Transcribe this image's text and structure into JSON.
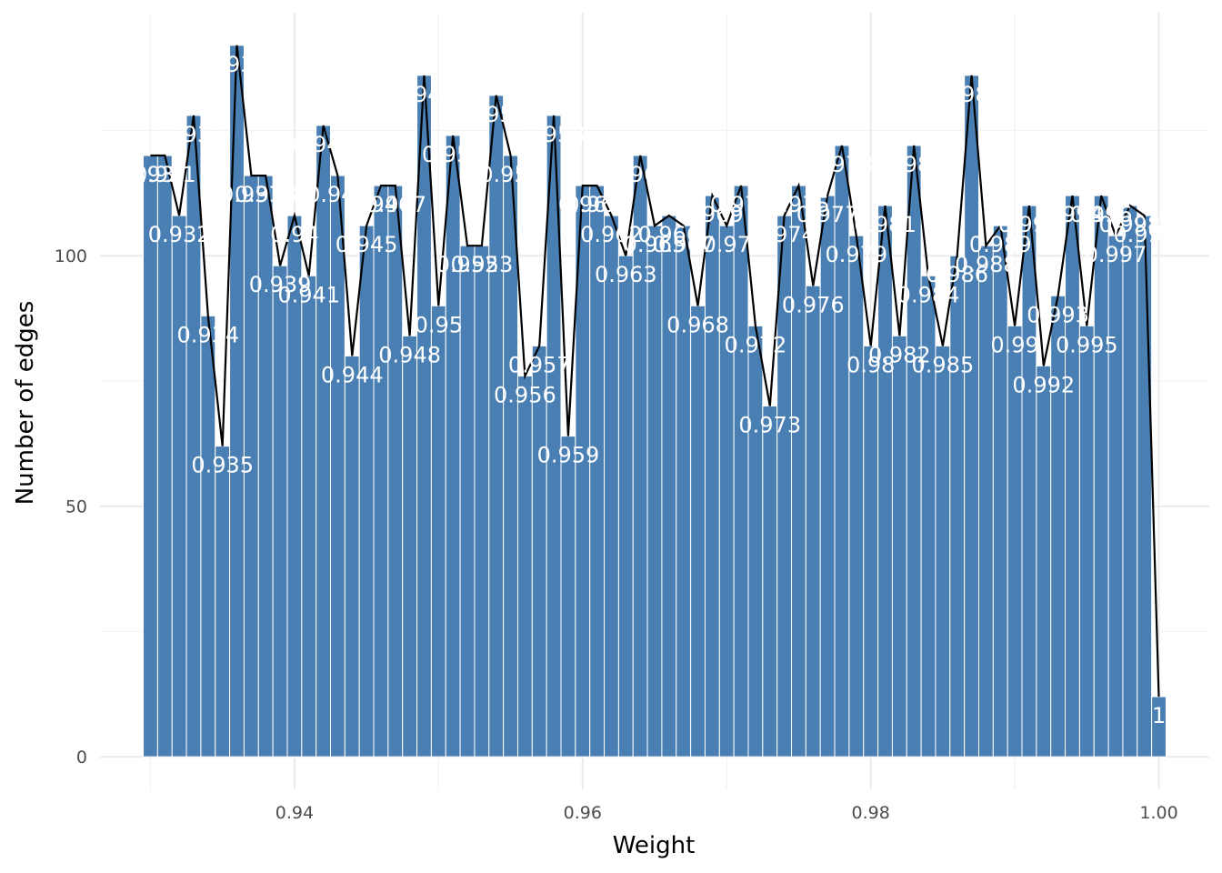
{
  "chart_data": {
    "type": "bar",
    "xlabel": "Weight",
    "ylabel": "Number of edges",
    "xlim": [
      0.9265,
      1.0035
    ],
    "ylim": [
      -6.5,
      148.5
    ],
    "x_ticks": [
      0.94,
      0.96,
      0.98,
      1.0
    ],
    "x_tick_labels": [
      "0.94",
      "0.96",
      "0.98",
      "1.00"
    ],
    "y_ticks": [
      0,
      50,
      100
    ],
    "y_tick_labels": [
      "0",
      "50",
      "100"
    ],
    "grid": true,
    "legend": "none",
    "bar_color": "#4a7fb3",
    "line_color": "#000000",
    "label_color": "#ffffff",
    "series": [
      {
        "x": [
          0.93,
          0.931,
          0.932,
          0.933,
          0.934,
          0.935,
          0.936,
          0.937,
          0.938,
          0.939,
          0.94,
          0.941,
          0.942,
          0.943,
          0.944,
          0.945,
          0.946,
          0.947,
          0.948,
          0.949,
          0.95,
          0.951,
          0.952,
          0.953,
          0.954,
          0.955,
          0.956,
          0.957,
          0.958,
          0.959,
          0.96,
          0.961,
          0.962,
          0.963,
          0.964,
          0.965,
          0.966,
          0.967,
          0.968,
          0.969,
          0.97,
          0.971,
          0.972,
          0.973,
          0.974,
          0.975,
          0.976,
          0.977,
          0.978,
          0.979,
          0.98,
          0.981,
          0.982,
          0.983,
          0.984,
          0.985,
          0.986,
          0.987,
          0.988,
          0.989,
          0.99,
          0.991,
          0.992,
          0.993,
          0.994,
          0.995,
          0.996,
          0.997,
          0.998,
          0.999,
          1.0
        ],
        "values": [
          120,
          120,
          108,
          128,
          88,
          62,
          142,
          116,
          116,
          98,
          108,
          96,
          126,
          116,
          80,
          106,
          114,
          114,
          84,
          136,
          90,
          124,
          102,
          102,
          132,
          120,
          76,
          82,
          128,
          64,
          114,
          114,
          108,
          100,
          120,
          106,
          108,
          106,
          90,
          112,
          106,
          114,
          86,
          70,
          108,
          114,
          94,
          112,
          122,
          104,
          82,
          110,
          84,
          122,
          96,
          82,
          100,
          136,
          102,
          106,
          86,
          110,
          78,
          92,
          112,
          86,
          112,
          104,
          110,
          108,
          12
        ],
        "labels": [
          "0.93",
          "0.931",
          "0.932",
          "0.933",
          "0.934",
          "0.935",
          "0.936",
          "0.937",
          "0.938",
          "0.939",
          "0.94",
          "0.941",
          "0.942",
          "0.943",
          "0.944",
          "0.945",
          "0.946",
          "0.947",
          "0.948",
          "0.949",
          "0.95",
          "0.951",
          "0.952",
          "0.953",
          "0.954",
          "0.955",
          "0.956",
          "0.957",
          "0.958",
          "0.959",
          "0.96",
          "0.961",
          "0.962",
          "0.963",
          "0.964",
          "0.965",
          "0.966",
          "0.967",
          "0.968",
          "0.969",
          "0.97",
          "0.971",
          "0.972",
          "0.973",
          "0.974",
          "0.975",
          "0.976",
          "0.977",
          "0.978",
          "0.979",
          "0.98",
          "0.981",
          "0.982",
          "0.983",
          "0.984",
          "0.985",
          "0.986",
          "0.987",
          "0.988",
          "0.989",
          "0.99",
          "0.991",
          "0.992",
          "0.993",
          "0.994",
          "0.995",
          "0.996",
          "0.997",
          "0.998",
          "0.999",
          "1"
        ]
      }
    ]
  }
}
